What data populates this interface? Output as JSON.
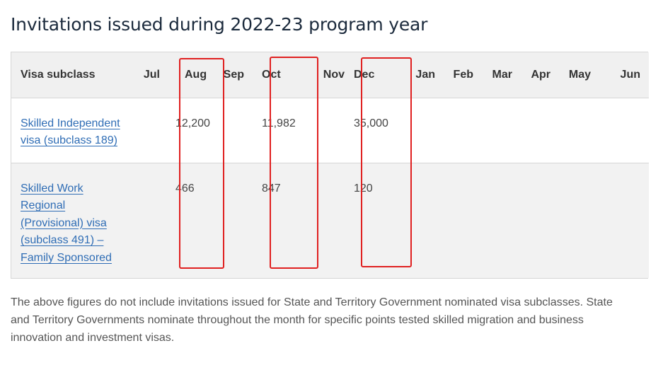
{
  "title": "Invitations issued during 2022-23 program year",
  "table": {
    "header_first": "Visa subclass",
    "months": [
      "Jul",
      "Aug",
      "Sep",
      "Oct",
      "Nov",
      "Dec",
      "Jan",
      "Feb",
      "Mar",
      "Apr",
      "May",
      "Jun"
    ],
    "rows": [
      {
        "visa": "Skilled Independent visa (subclass 189)",
        "values": [
          "",
          "12,200",
          "",
          "11,982",
          "",
          "35,000",
          "",
          "",
          "",
          "",
          "",
          ""
        ]
      },
      {
        "visa": "Skilled Work Regional (Provisional) visa (subclass 491) – Family Sponsored",
        "values": [
          "",
          "466",
          "",
          "847",
          "",
          "120",
          "",
          "",
          "",
          "",
          "",
          ""
        ]
      }
    ]
  },
  "highlight_color": "#e02020",
  "note": "The above figures do not include invitations issued for State and Territory Government nominated visa subclasses. State and Territory Governments nominate throughout the month for specific points tested skilled migration and business innovation and investment visas."
}
